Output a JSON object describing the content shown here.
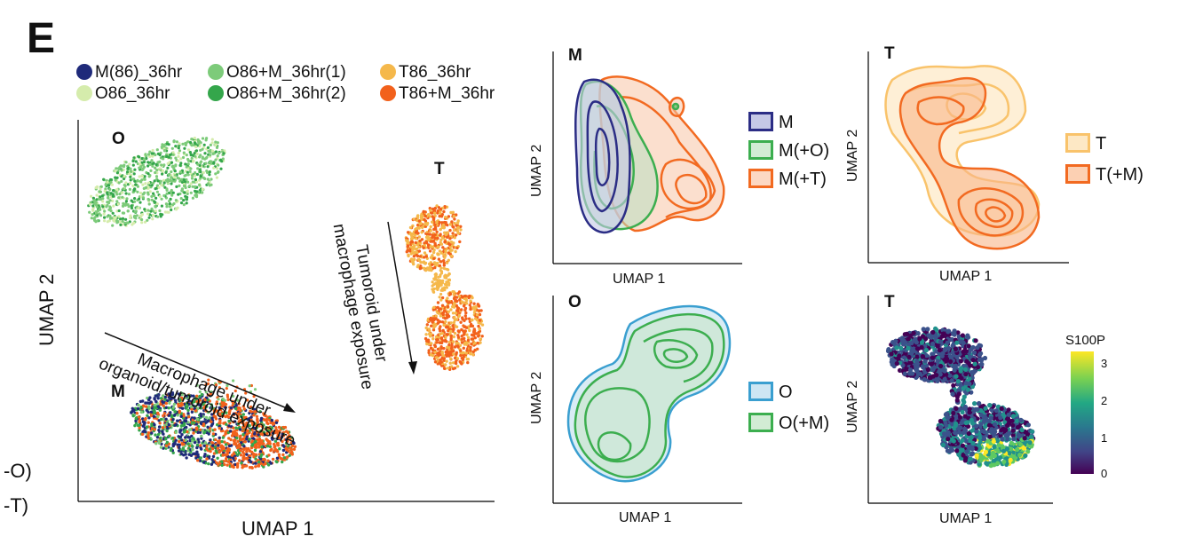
{
  "panel": "E",
  "left_cut_labels": [
    "-O)",
    "-T)"
  ],
  "legend": [
    {
      "label": "M(86)_36hr",
      "color": "#1f2a7a"
    },
    {
      "label": "O86+M_36hr(1)",
      "color": "#7dcb7a"
    },
    {
      "label": "T86_36hr",
      "color": "#f5b84b"
    },
    {
      "label": "O86_36hr",
      "color": "#d5ecac"
    },
    {
      "label": "O86+M_36hr(2)",
      "color": "#34a64b"
    },
    {
      "label": "T86+M_36hr",
      "color": "#f2611c"
    }
  ],
  "main_plot": {
    "xlabel": "UMAP 1",
    "ylabel": "UMAP 2",
    "cluster_labels": {
      "O": "O",
      "T": "T",
      "M": "M"
    },
    "annotation_1_lines": [
      "Macrophage under",
      "organoid/tumoroid exposure"
    ],
    "annotation_2_lines": [
      "Tumoroid under",
      "macrophage exposure"
    ]
  },
  "chart_data": [
    {
      "type": "scatter",
      "title": "",
      "xlabel": "UMAP 1",
      "ylabel": "UMAP 2",
      "series": [
        {
          "name": "M(86)_36hr",
          "cluster": "M"
        },
        {
          "name": "O86+M_36hr(1)",
          "cluster": "O/M"
        },
        {
          "name": "O86+M_36hr(2)",
          "cluster": "O/M"
        },
        {
          "name": "O86_36hr",
          "cluster": "O"
        },
        {
          "name": "T86_36hr",
          "cluster": "T"
        },
        {
          "name": "T86+M_36hr",
          "cluster": "T/M"
        }
      ]
    },
    {
      "type": "area",
      "title": "M",
      "xlabel": "UMAP 1",
      "ylabel": "UMAP 2",
      "series": [
        {
          "name": "M",
          "color": "#2b2d85"
        },
        {
          "name": "M(+O)",
          "color": "#3cae4f"
        },
        {
          "name": "M(+T)",
          "color": "#f26a21"
        }
      ]
    },
    {
      "type": "area",
      "title": "T",
      "xlabel": "UMAP 1",
      "ylabel": "UMAP 2",
      "series": [
        {
          "name": "T",
          "color": "#f9c36b"
        },
        {
          "name": "T(+M)",
          "color": "#f26a21"
        }
      ]
    },
    {
      "type": "area",
      "title": "O",
      "xlabel": "UMAP 1",
      "ylabel": "UMAP 2",
      "series": [
        {
          "name": "O",
          "color": "#3a9fd0"
        },
        {
          "name": "O(+M)",
          "color": "#3cae4f"
        }
      ]
    },
    {
      "type": "scatter",
      "title": "T",
      "xlabel": "UMAP 1",
      "ylabel": "UMAP 2",
      "colorbar": {
        "label": "S100P",
        "ticks": [
          0,
          1,
          2,
          3
        ],
        "range": [
          0,
          3.3
        ]
      }
    }
  ],
  "sub_m": {
    "letter": "M",
    "xlabel": "UMAP 1",
    "ylabel": "UMAP 2",
    "legend": [
      {
        "label": "M",
        "color": "#2b2d85"
      },
      {
        "label": "M(+O)",
        "color": "#3cae4f"
      },
      {
        "label": "M(+T)",
        "color": "#f26a21"
      }
    ]
  },
  "sub_t": {
    "letter": "T",
    "xlabel": "UMAP 1",
    "ylabel": "UMAP 2",
    "legend": [
      {
        "label": "T",
        "color": "#f9c36b"
      },
      {
        "label": "T(+M)",
        "color": "#f26a21"
      }
    ]
  },
  "sub_o": {
    "letter": "O",
    "xlabel": "UMAP 1",
    "ylabel": "UMAP 2",
    "legend": [
      {
        "label": "O",
        "color": "#3a9fd0"
      },
      {
        "label": "O(+M)",
        "color": "#3cae4f"
      }
    ]
  },
  "sub_t2": {
    "letter": "T",
    "xlabel": "UMAP 1",
    "ylabel": "UMAP 2",
    "colorbar_label": "S100P",
    "colorbar_ticks": [
      "3",
      "2",
      "1",
      "0"
    ]
  }
}
